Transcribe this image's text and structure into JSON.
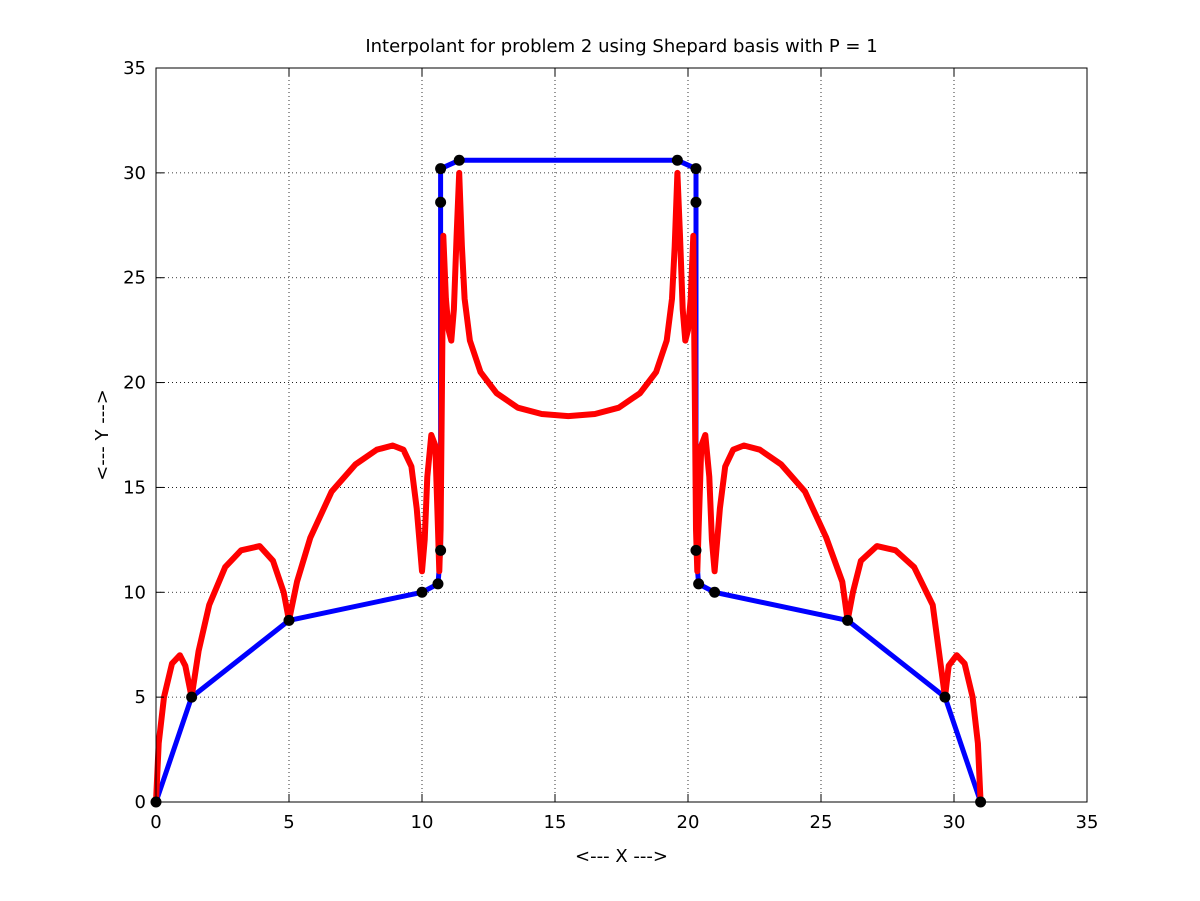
{
  "chart_data": {
    "type": "line",
    "title": "Interpolant for problem 2 using Shepard basis with P = 1",
    "xlabel": "<--- X --->",
    "ylabel": "<--- Y --->",
    "xlim": [
      0,
      35
    ],
    "ylim": [
      0,
      35
    ],
    "xticks": [
      "0",
      "5",
      "10",
      "15",
      "20",
      "25",
      "30",
      "35"
    ],
    "yticks": [
      "0",
      "5",
      "10",
      "15",
      "20",
      "25",
      "30",
      "35"
    ],
    "grid": true,
    "colors": {
      "data": "#0000ff",
      "interpolant": "#ff0000",
      "markers": "#000000"
    },
    "series": [
      {
        "values_x": [
          0,
          1.34,
          5,
          10,
          10.6,
          10.7,
          10.7,
          10.7,
          11.4,
          19.6,
          20.3,
          20.3,
          20.3,
          20.4,
          21,
          26,
          29.66,
          31
        ],
        "values_y": [
          0,
          5,
          8.66,
          10,
          10.4,
          12,
          28.6,
          30.2,
          30.6,
          30.6,
          30.2,
          28.6,
          12,
          10.4,
          10,
          8.66,
          5,
          0
        ]
      },
      {
        "values_x": [
          0,
          0.1,
          0.3,
          0.6,
          0.9,
          1.1,
          1.34,
          1.6,
          2.0,
          2.6,
          3.2,
          3.9,
          4.4,
          4.8,
          5.0,
          5.3,
          5.8,
          6.6,
          7.5,
          8.3,
          8.9,
          9.3,
          9.6,
          9.8,
          10.0,
          10.1,
          10.2,
          10.35,
          10.5,
          10.6,
          10.65,
          10.7,
          10.75,
          10.8,
          10.9,
          11.0,
          11.1,
          11.2,
          11.3,
          11.4,
          11.5,
          11.6,
          11.8,
          12.2,
          12.8,
          13.6,
          14.5,
          15.5,
          16.5,
          17.4,
          18.2,
          18.8,
          19.2,
          19.4,
          19.5,
          19.6,
          19.7,
          19.8,
          19.9,
          20.0,
          20.1,
          20.2,
          20.25,
          20.3,
          20.35,
          20.4,
          20.5,
          20.65,
          20.8,
          20.9,
          21.0,
          21.2,
          21.4,
          21.7,
          22.1,
          22.7,
          23.5,
          24.4,
          25.2,
          25.8,
          26.0,
          26.2,
          26.5,
          27.1,
          27.8,
          28.5,
          29.2,
          29.66,
          29.8,
          30.1,
          30.4,
          30.7,
          30.9,
          31.0
        ],
        "values_y": [
          0,
          2.8,
          5.0,
          6.6,
          7.0,
          6.5,
          5.0,
          7.2,
          9.4,
          11.2,
          12.0,
          12.2,
          11.5,
          10.0,
          8.66,
          10.5,
          12.6,
          14.8,
          16.1,
          16.8,
          17.0,
          16.8,
          16.0,
          14.0,
          11.0,
          12.5,
          15.5,
          17.5,
          17.0,
          13.0,
          11.0,
          13.0,
          20.0,
          27.0,
          24.0,
          22.5,
          22.0,
          23.5,
          27.0,
          30.0,
          26.5,
          24.0,
          22.0,
          20.5,
          19.5,
          18.8,
          18.5,
          18.4,
          18.5,
          18.8,
          19.5,
          20.5,
          22.0,
          24.0,
          26.5,
          30.0,
          27.0,
          23.5,
          22.0,
          22.5,
          24.0,
          27.0,
          20.0,
          13.0,
          11.0,
          13.0,
          17.0,
          17.5,
          15.5,
          12.5,
          11.0,
          14.0,
          16.0,
          16.8,
          17.0,
          16.8,
          16.1,
          14.8,
          12.6,
          10.5,
          8.66,
          10.0,
          11.5,
          12.2,
          12.0,
          11.2,
          9.4,
          5.0,
          6.5,
          7.0,
          6.6,
          5.0,
          2.8,
          0
        ]
      }
    ]
  }
}
